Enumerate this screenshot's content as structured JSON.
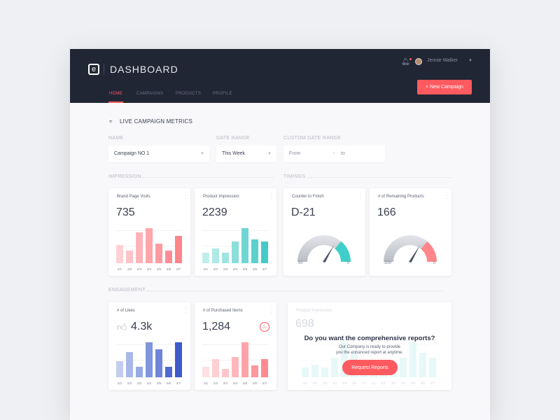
{
  "header": {
    "title": "DASHBOARD",
    "user": "Jennie Walker",
    "new_campaign": "+  New Campaign",
    "nav": [
      "HOME",
      "CAMPAIGNS",
      "PRODUCTS",
      "PROFILE"
    ]
  },
  "main": {
    "heading": "LIVE CAMPAIGN METRICS",
    "filters": {
      "name_label": "NAME",
      "name_value": "Campaign NO.1",
      "range_label": "DATE RANGE",
      "range_value": "This Week",
      "custom_label": "CUSTOM DATE RANGE",
      "from": "From",
      "dash": "-",
      "to": "to"
    },
    "sections": {
      "impression": "IMPRESSION",
      "timings": "TIMINGS",
      "engagement": "ENGAGEMENT"
    },
    "cards": [
      {
        "title": "Brand Page Visits",
        "value": "735",
        "values": [
          45,
          30,
          75,
          85,
          48,
          30,
          66
        ],
        "colors": [
          "#ffd0d4",
          "#ffc4c8",
          "#ffb4b9",
          "#ffa6ab",
          "#ff9aa0",
          "#ff8e94",
          "#ff858b"
        ]
      },
      {
        "title": "Product Impression",
        "value": "2239",
        "values": [
          18,
          26,
          18,
          38,
          62,
          42,
          38
        ],
        "colors": [
          "#bfeeec",
          "#aee9e6",
          "#9fe4e1",
          "#8cdedb",
          "#6fd6d3",
          "#5ad1cd",
          "#45cbc7"
        ]
      },
      {
        "title": "Counter to Finish",
        "value": "D-21",
        "gauge_min": "50",
        "gauge_max": "0",
        "gauge_value": 21,
        "gauge_color": "#3ecfca"
      },
      {
        "title": "# of Remaining Products",
        "value": "166",
        "gauge_min": "300",
        "gauge_max": "0",
        "gauge_value": 166,
        "gauge_color": "#ff868b"
      },
      {
        "title": "# of Likes",
        "value": "4.3k",
        "values": [
          28,
          45,
          18,
          62,
          50,
          18,
          62
        ],
        "colors": [
          "#c3cdee",
          "#a9b8e8",
          "#98a9e3",
          "#7f95dc",
          "#7085d8",
          "#4e6ad0",
          "#3d5bcc"
        ]
      },
      {
        "title": "# of Purchased Items",
        "value": "1,284",
        "values": [
          22,
          38,
          18,
          42,
          72,
          25,
          38
        ],
        "colors": [
          "#ffdfe1",
          "#ffd0d3",
          "#ffc6ca",
          "#ffb7bb",
          "#ffa3a8",
          "#ff979c",
          "#ff8a90"
        ]
      }
    ],
    "x_labels": [
      "2/1",
      "2/2",
      "2/3",
      "2/4",
      "2/5",
      "2/6",
      "2/7"
    ],
    "report": {
      "bg_title": "Product Impression",
      "bg_value": "698",
      "question": "Do you want the comprehensive reports?",
      "desc1": "Our Company is ready to provide",
      "desc2": "you the enhanced report at anytime.",
      "button": "Request Reports",
      "values": [
        20,
        26,
        20,
        40,
        72,
        50,
        30,
        28,
        22,
        30,
        40,
        72,
        50,
        40
      ],
      "labels": [
        "2/1",
        "2/2",
        "2/3",
        "2/4",
        "2/5",
        "2/6",
        "2/7",
        "2/1",
        "2/2",
        "2/3",
        "2/4",
        "2/5",
        "2/6",
        "2/7"
      ]
    }
  }
}
